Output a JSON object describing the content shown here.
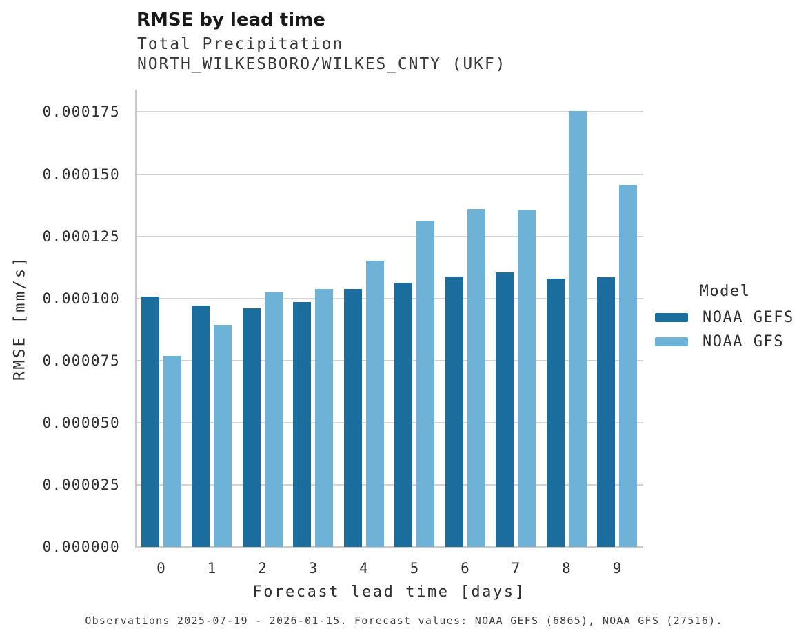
{
  "header": {
    "title": "RMSE by lead time",
    "subtitle_line1": "Total Precipitation",
    "subtitle_line2": "NORTH_WILKESBORO/WILKES_CNTY (UKF)"
  },
  "footer": {
    "caption": "Observations 2025-07-19 - 2026-01-15. Forecast values: NOAA GEFS (6865), NOAA GFS (27516)."
  },
  "chart_data": {
    "type": "bar",
    "title": "RMSE by lead time",
    "subtitle": [
      "Total Precipitation",
      "NORTH_WILKESBORO/WILKES_CNTY (UKF)"
    ],
    "xlabel": "Forecast lead time [days]",
    "ylabel": "RMSE [mm/s]",
    "categories": [
      "0",
      "1",
      "2",
      "3",
      "4",
      "5",
      "6",
      "7",
      "8",
      "9"
    ],
    "series": [
      {
        "name": "NOAA GEFS",
        "color": "#1B6D9E",
        "values": [
          0.0001007,
          9.7e-05,
          9.6e-05,
          9.86e-05,
          0.0001039,
          0.0001062,
          0.0001088,
          0.0001104,
          0.0001079,
          0.0001086
        ]
      },
      {
        "name": "NOAA GFS",
        "color": "#6FB2D8",
        "values": [
          7.68e-05,
          8.93e-05,
          0.0001023,
          0.0001039,
          0.0001151,
          0.0001313,
          0.0001361,
          0.0001358,
          0.0001753,
          0.0001456
        ]
      }
    ],
    "ylim": [
      0,
      0.000184
    ],
    "yticks": {
      "values": [
        0,
        2.5e-05,
        5e-05,
        7.5e-05,
        0.0001,
        0.000125,
        0.00015,
        0.000175
      ],
      "labels": [
        "0.000000",
        "0.000025",
        "0.000050",
        "0.000075",
        "0.000100",
        "0.000125",
        "0.000150",
        "0.000175"
      ]
    },
    "grid": "horizontal-only",
    "legend_position": "right",
    "legend_title": "Model",
    "colors": {
      "gridline": "#d4d4d4",
      "axis_line": "#c9c9c9"
    }
  }
}
